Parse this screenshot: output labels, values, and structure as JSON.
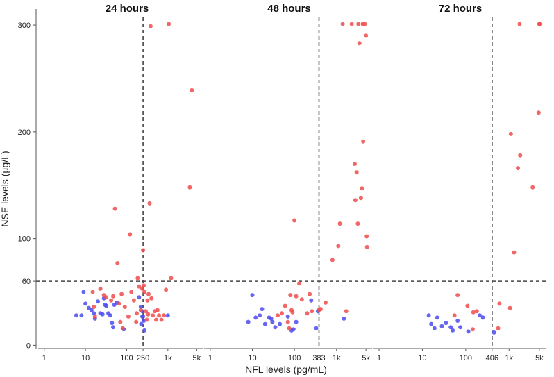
{
  "chart_data": {
    "type": "scatter",
    "xlabel": "NFL levels (pg/mL)",
    "ylabel": "NSE levels (µg/L)",
    "x_scale": "log",
    "xlim": [
      0.8,
      7000
    ],
    "ylim": [
      -3,
      315
    ],
    "x_ticks": [
      1,
      10,
      100,
      1000,
      5000
    ],
    "x_tick_labels": [
      "1",
      "10",
      "100",
      "1k",
      "5k"
    ],
    "y_ticks": [
      0,
      60,
      100,
      200,
      300
    ],
    "y_tick_labels": [
      "0",
      "60",
      "100",
      "200",
      "300"
    ],
    "y_threshold": 60,
    "colors": {
      "red": "#f04b4b",
      "blue": "#4b4bf0"
    },
    "panels": [
      {
        "title": "24 hours",
        "x_threshold": 250,
        "x_threshold_label": "250",
        "points": [
          [
            6,
            28,
            "blue"
          ],
          [
            8,
            28,
            "blue"
          ],
          [
            9,
            50,
            "blue"
          ],
          [
            10,
            39,
            "blue"
          ],
          [
            12,
            35,
            "blue"
          ],
          [
            14,
            33,
            "blue"
          ],
          [
            16,
            30,
            "blue"
          ],
          [
            17,
            25,
            "blue"
          ],
          [
            20,
            41,
            "blue"
          ],
          [
            23,
            30,
            "blue"
          ],
          [
            26,
            29,
            "blue"
          ],
          [
            28,
            44,
            "blue"
          ],
          [
            30,
            38,
            "blue"
          ],
          [
            32,
            37,
            "blue"
          ],
          [
            36,
            30,
            "blue"
          ],
          [
            40,
            28,
            "blue"
          ],
          [
            44,
            21,
            "blue"
          ],
          [
            47,
            17,
            "blue"
          ],
          [
            50,
            38,
            "blue"
          ],
          [
            58,
            40,
            "blue"
          ],
          [
            85,
            15,
            "blue"
          ],
          [
            200,
            45,
            "blue"
          ],
          [
            220,
            36,
            "blue"
          ],
          [
            225,
            20,
            "blue"
          ],
          [
            240,
            32,
            "blue"
          ],
          [
            240,
            27,
            "blue"
          ],
          [
            250,
            27,
            "blue"
          ],
          [
            260,
            23,
            "blue"
          ],
          [
            270,
            14,
            "blue"
          ],
          [
            1000,
            28,
            "blue"
          ],
          [
            15,
            50,
            "red"
          ],
          [
            16,
            36,
            "red"
          ],
          [
            17,
            27,
            "red"
          ],
          [
            23,
            53,
            "red"
          ],
          [
            28,
            47,
            "red"
          ],
          [
            32,
            45,
            "red"
          ],
          [
            42,
            42,
            "red"
          ],
          [
            47,
            46,
            "red"
          ],
          [
            52,
            128,
            "red"
          ],
          [
            60,
            77,
            "red"
          ],
          [
            65,
            39,
            "red"
          ],
          [
            70,
            22,
            "red"
          ],
          [
            75,
            48,
            "red"
          ],
          [
            80,
            16,
            "red"
          ],
          [
            90,
            36,
            "red"
          ],
          [
            110,
            27,
            "red"
          ],
          [
            120,
            104,
            "red"
          ],
          [
            130,
            50,
            "red"
          ],
          [
            150,
            42,
            "red"
          ],
          [
            170,
            22,
            "red"
          ],
          [
            175,
            30,
            "red"
          ],
          [
            185,
            63,
            "red"
          ],
          [
            200,
            55,
            "red"
          ],
          [
            220,
            33,
            "red"
          ],
          [
            240,
            53,
            "red"
          ],
          [
            250,
            89,
            "red"
          ],
          [
            260,
            56,
            "red"
          ],
          [
            270,
            50,
            "red"
          ],
          [
            290,
            32,
            "red"
          ],
          [
            310,
            24,
            "red"
          ],
          [
            320,
            42,
            "red"
          ],
          [
            330,
            29,
            "red"
          ],
          [
            340,
            48,
            "red"
          ],
          [
            360,
            133,
            "red"
          ],
          [
            380,
            299,
            "red"
          ],
          [
            400,
            44,
            "red"
          ],
          [
            430,
            28,
            "red"
          ],
          [
            480,
            32,
            "red"
          ],
          [
            520,
            24,
            "red"
          ],
          [
            560,
            33,
            "red"
          ],
          [
            610,
            28,
            "red"
          ],
          [
            700,
            24,
            "red"
          ],
          [
            800,
            28,
            "red"
          ],
          [
            900,
            52,
            "red"
          ],
          [
            1050,
            301,
            "red"
          ],
          [
            1200,
            63,
            "red"
          ],
          [
            3400,
            148,
            "red"
          ],
          [
            3800,
            239,
            "red"
          ]
        ]
      },
      {
        "title": "48 hours",
        "x_threshold": 383,
        "x_threshold_label": "383",
        "points": [
          [
            8,
            22,
            "blue"
          ],
          [
            10,
            47,
            "blue"
          ],
          [
            12,
            26,
            "blue"
          ],
          [
            15,
            28,
            "blue"
          ],
          [
            17,
            34,
            "blue"
          ],
          [
            20,
            20,
            "blue"
          ],
          [
            25,
            26,
            "blue"
          ],
          [
            28,
            25,
            "blue"
          ],
          [
            30,
            22,
            "blue"
          ],
          [
            35,
            17,
            "blue"
          ],
          [
            45,
            20,
            "blue"
          ],
          [
            70,
            27,
            "blue"
          ],
          [
            85,
            14,
            "blue"
          ],
          [
            95,
            15,
            "blue"
          ],
          [
            110,
            22,
            "blue"
          ],
          [
            250,
            42,
            "blue"
          ],
          [
            330,
            16,
            "blue"
          ],
          [
            360,
            32,
            "blue"
          ],
          [
            1500,
            25,
            "blue"
          ],
          [
            40,
            28,
            "red"
          ],
          [
            50,
            30,
            "red"
          ],
          [
            60,
            37,
            "red"
          ],
          [
            70,
            22,
            "red"
          ],
          [
            75,
            16,
            "red"
          ],
          [
            80,
            47,
            "red"
          ],
          [
            85,
            33,
            "red"
          ],
          [
            90,
            31,
            "red"
          ],
          [
            100,
            117,
            "red"
          ],
          [
            110,
            46,
            "red"
          ],
          [
            130,
            58,
            "red"
          ],
          [
            150,
            43,
            "red"
          ],
          [
            200,
            30,
            "red"
          ],
          [
            230,
            48,
            "red"
          ],
          [
            260,
            32,
            "red"
          ],
          [
            380,
            33,
            "red"
          ],
          [
            420,
            34,
            "red"
          ],
          [
            550,
            40,
            "red"
          ],
          [
            800,
            80,
            "red"
          ],
          [
            1100,
            93,
            "red"
          ],
          [
            1200,
            114,
            "red"
          ],
          [
            1400,
            301,
            "red"
          ],
          [
            1700,
            32,
            "red"
          ],
          [
            2300,
            301,
            "red"
          ],
          [
            2700,
            170,
            "red"
          ],
          [
            2800,
            136,
            "red"
          ],
          [
            3000,
            162,
            "red"
          ],
          [
            3200,
            114,
            "red"
          ],
          [
            3300,
            301,
            "red"
          ],
          [
            3500,
            283,
            "red"
          ],
          [
            3800,
            138,
            "red"
          ],
          [
            4000,
            147,
            "red"
          ],
          [
            4200,
            301,
            "red"
          ],
          [
            4300,
            191,
            "red"
          ],
          [
            4700,
            301,
            "red"
          ],
          [
            5000,
            290,
            "red"
          ],
          [
            5200,
            102,
            "red"
          ],
          [
            5300,
            92,
            "red"
          ]
        ]
      },
      {
        "title": "72 hours",
        "x_threshold": 406,
        "x_threshold_label": "406",
        "points": [
          [
            14,
            28,
            "blue"
          ],
          [
            16,
            20,
            "blue"
          ],
          [
            19,
            16,
            "blue"
          ],
          [
            22,
            26,
            "blue"
          ],
          [
            28,
            18,
            "blue"
          ],
          [
            35,
            21,
            "blue"
          ],
          [
            45,
            17,
            "blue"
          ],
          [
            50,
            14,
            "blue"
          ],
          [
            65,
            23,
            "blue"
          ],
          [
            75,
            17,
            "blue"
          ],
          [
            115,
            13,
            "blue"
          ],
          [
            210,
            28,
            "blue"
          ],
          [
            250,
            26,
            "blue"
          ],
          [
            450,
            12,
            "blue"
          ],
          [
            55,
            28,
            "red"
          ],
          [
            65,
            47,
            "red"
          ],
          [
            110,
            37,
            "red"
          ],
          [
            145,
            15,
            "red"
          ],
          [
            150,
            31,
            "red"
          ],
          [
            180,
            32,
            "red"
          ],
          [
            560,
            16,
            "red"
          ],
          [
            600,
            39,
            "red"
          ],
          [
            1050,
            35,
            "red"
          ],
          [
            1100,
            198,
            "red"
          ],
          [
            1300,
            87,
            "red"
          ],
          [
            1600,
            166,
            "red"
          ],
          [
            1750,
            301,
            "red"
          ],
          [
            1800,
            178,
            "red"
          ],
          [
            3500,
            148,
            "red"
          ],
          [
            4800,
            218,
            "red"
          ],
          [
            5000,
            301,
            "red"
          ],
          [
            5050,
            301,
            "red"
          ]
        ]
      }
    ]
  }
}
